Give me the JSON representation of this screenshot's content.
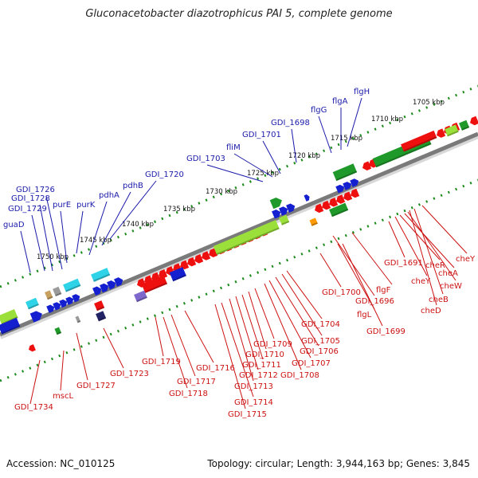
{
  "title": "Gluconacetobacter diazotrophicus PAI 5, complete genome",
  "footer": {
    "accession": "Accession: NC_010125",
    "topology": "Topology: circular; Length: 3,944,163 bp; Genes: 3,845"
  },
  "kbp_labels": [
    "1705 kbp",
    "1710 kbp",
    "1715 kbp",
    "1720 kbp",
    "1725 kbp",
    "1730 kbp",
    "1735 kbp",
    "1740 kbp",
    "1745 kbp",
    "1750 kbp"
  ],
  "top_labels": [
    "guaD",
    "GDI_1729",
    "GDI_1728",
    "GDI_1726",
    "purE",
    "purK",
    "pdhA",
    "pdhB",
    "GDI_1720",
    "GDI_1703",
    "fliM",
    "GDI_1701",
    "GDI_1698",
    "flgG",
    "flgA",
    "flgH"
  ],
  "bottom_labels": [
    "GDI_1734",
    "mscL",
    "GDI_1727",
    "GDI_1723",
    "GDI_1719",
    "GDI_1718",
    "GDI_1717",
    "GDI_1716",
    "GDI_1715",
    "GDI_1714",
    "GDI_1713",
    "GDI_1712",
    "GDI_1711",
    "GDI_1710",
    "GDI_1709",
    "GDI_1708",
    "GDI_1707",
    "GDI_1706",
    "GDI_1705",
    "GDI_1704",
    "GDI_1700",
    "GDI_1699",
    "flgL",
    "GDI_1696",
    "flgF",
    "GDI_1691",
    "cheY",
    "cheR",
    "cheA",
    "cheW",
    "cheY",
    "cheB",
    "cheD"
  ]
}
